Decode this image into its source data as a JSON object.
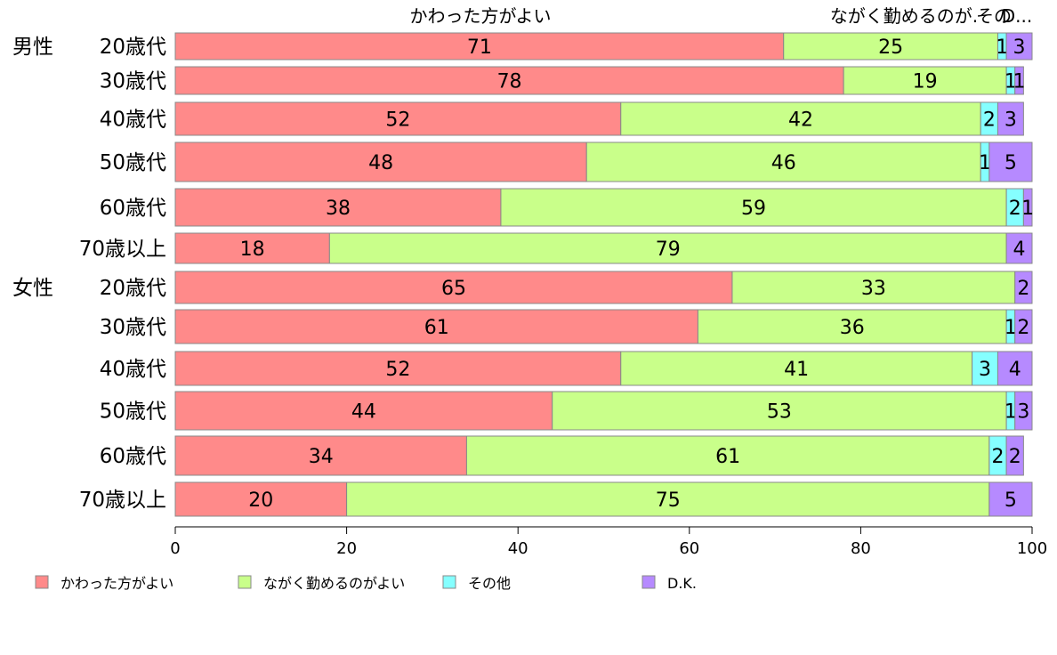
{
  "chart_data": {
    "type": "bar",
    "orientation": "horizontal",
    "stacked": true,
    "group_labels": [
      "男性",
      "女性"
    ],
    "categories": [
      "20歳代",
      "30歳代",
      "40歳代",
      "50歳代",
      "60歳代",
      "70歳以上",
      "20歳代",
      "30歳代",
      "40歳代",
      "50歳代",
      "60歳代",
      "70歳以上"
    ],
    "series": [
      {
        "name": "かわった方がよい",
        "color": "#ff8a8a",
        "values": [
          71,
          78,
          52,
          48,
          38,
          18,
          65,
          61,
          52,
          44,
          34,
          20
        ]
      },
      {
        "name": "ながく勤めるのがよい",
        "color": "#c9ff8a",
        "values": [
          25,
          19,
          42,
          46,
          59,
          79,
          33,
          36,
          41,
          53,
          61,
          75
        ]
      },
      {
        "name": "その他",
        "color": "#85ffff",
        "values": [
          1,
          1,
          2,
          1,
          2,
          0,
          0,
          1,
          3,
          1,
          2,
          0
        ]
      },
      {
        "name": "D.K.",
        "color": "#b68aff",
        "values": [
          3,
          1,
          3,
          5,
          1,
          4,
          2,
          2,
          4,
          3,
          2,
          5
        ]
      }
    ],
    "top_labels": [
      "かわった方がよい",
      "ながく勤めるのが.",
      "その",
      "D..."
    ],
    "xlim": [
      0,
      100
    ],
    "xticks": [
      "0",
      "20",
      "40",
      "60",
      "80",
      "100"
    ],
    "grid": false,
    "legend_position": "bottom"
  }
}
